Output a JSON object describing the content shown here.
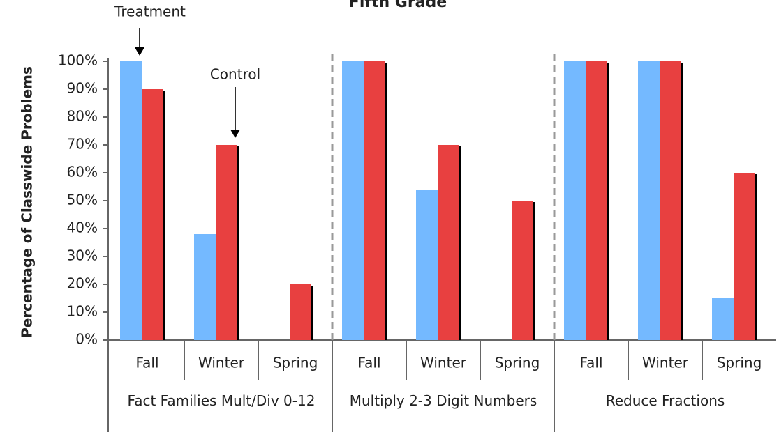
{
  "chart_data": {
    "type": "bar",
    "title": "Fifth Grade",
    "y_label": "Percentage of Classwide Problems",
    "categories": [
      "Fall",
      "Winter",
      "Spring",
      "Fall",
      "Winter",
      "Spring",
      "Fall",
      "Winter",
      "Spring"
    ],
    "groups": [
      "Fact Families Mult/Div 0-12",
      "Multiply 2-3 Digit Numbers",
      "Reduce Fractions"
    ],
    "series": [
      {
        "name": "Treatment",
        "color": "#74b9ff",
        "values": [
          100,
          38,
          0,
          100,
          54,
          0,
          100,
          100,
          15
        ]
      },
      {
        "name": "Control",
        "color": "#e84040",
        "values": [
          90,
          70,
          20,
          100,
          70,
          50,
          100,
          100,
          60
        ]
      }
    ],
    "ylim": [
      0,
      100
    ],
    "yticks": [
      {
        "value": 0,
        "label": "0%"
      },
      {
        "value": 10,
        "label": "10%"
      },
      {
        "value": 20,
        "label": "20%"
      },
      {
        "value": 30,
        "label": "30%"
      },
      {
        "value": 40,
        "label": "40%"
      },
      {
        "value": 50,
        "label": "50%"
      },
      {
        "value": 60,
        "label": "60%"
      },
      {
        "value": 70,
        "label": "70%"
      },
      {
        "value": 80,
        "label": "80%"
      },
      {
        "value": 90,
        "label": "90%"
      },
      {
        "value": 100,
        "label": "100%"
      }
    ],
    "grid": false
  }
}
